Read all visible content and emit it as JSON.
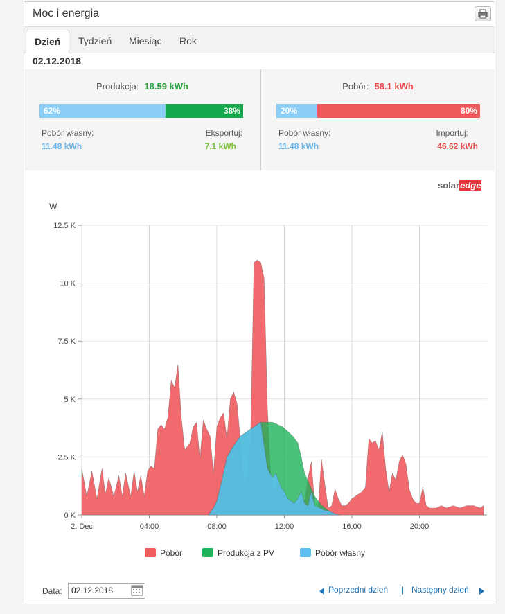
{
  "title": "Moc i energia",
  "tabs": [
    {
      "label": "Dzień",
      "active": true
    },
    {
      "label": "Tydzień",
      "active": false
    },
    {
      "label": "Miesiąc",
      "active": false
    },
    {
      "label": "Rok",
      "active": false
    }
  ],
  "date": "02.12.2018",
  "production": {
    "label": "Produkcja:",
    "value": "18.59 kWh",
    "self_pct": 0.62,
    "self_pct_label": "62%",
    "export_pct_label": "38%",
    "self_label": "Pobór własny:",
    "self_value": "11.48 kWh",
    "export_label": "Eksportuj:",
    "export_value": "7.1 kWh"
  },
  "consumption": {
    "label": "Pobór:",
    "value": "58.1 kWh",
    "self_pct": 0.2,
    "self_pct_label": "20%",
    "import_pct_label": "80%",
    "self_label": "Pobór własny:",
    "self_value": "11.48 kWh",
    "import_label": "Importuj:",
    "import_value": "46.62 kWh"
  },
  "logo": {
    "part1": "solar",
    "part2": "edge"
  },
  "colors": {
    "consumption": "#f05b5e",
    "production": "#1db35a",
    "self": "#5cc0f2",
    "blue_bar": "#8bcdf5",
    "green_bar": "#12a84b",
    "red_bar": "#f15a5c",
    "green_text": "#2e9e3f",
    "red_text": "#e5484b",
    "blue_text": "#6ab4e6",
    "export_text": "#7bbf3a"
  },
  "chart_data": {
    "type": "area",
    "ylabel": "W",
    "ylim": [
      0,
      12500
    ],
    "yticks": [
      {
        "v": 0,
        "label": "0 K"
      },
      {
        "v": 2500,
        "label": "2.5 K"
      },
      {
        "v": 5000,
        "label": "5 K"
      },
      {
        "v": 7500,
        "label": "7.5 K"
      },
      {
        "v": 10000,
        "label": "10 K"
      },
      {
        "v": 12500,
        "label": "12.5 K"
      }
    ],
    "xlim": [
      0,
      24
    ],
    "xticks": [
      {
        "v": 0,
        "label": "2. Dec"
      },
      {
        "v": 4,
        "label": "04:00"
      },
      {
        "v": 8,
        "label": "08:00"
      },
      {
        "v": 12,
        "label": "12:00"
      },
      {
        "v": 16,
        "label": "16:00"
      },
      {
        "v": 20,
        "label": "20:00"
      }
    ],
    "series": [
      {
        "name": "Pobór",
        "color": "#f05b5e",
        "x": [
          0,
          0.3,
          0.6,
          0.9,
          1.2,
          1.4,
          1.6,
          1.9,
          2.2,
          2.4,
          2.6,
          2.9,
          3.1,
          3.3,
          3.5,
          3.7,
          3.9,
          4.1,
          4.3,
          4.5,
          4.7,
          4.9,
          5.1,
          5.3,
          5.5,
          5.7,
          5.9,
          6.1,
          6.4,
          6.6,
          6.8,
          7.0,
          7.2,
          7.4,
          7.6,
          7.8,
          8.0,
          8.2,
          8.4,
          8.6,
          8.8,
          9.0,
          9.2,
          9.4,
          9.6,
          9.8,
          10.0,
          10.2,
          10.4,
          10.6,
          10.8,
          11.0,
          11.2,
          11.4,
          11.6,
          11.8,
          12.0,
          12.2,
          12.4,
          12.6,
          12.8,
          13.0,
          13.2,
          13.4,
          13.6,
          13.8,
          14.0,
          14.2,
          14.4,
          14.6,
          14.8,
          15.0,
          15.2,
          15.4,
          15.6,
          15.8,
          16.0,
          16.2,
          16.4,
          16.6,
          16.8,
          17.0,
          17.2,
          17.4,
          17.6,
          17.8,
          18.0,
          18.2,
          18.4,
          18.6,
          18.8,
          19.0,
          19.2,
          19.4,
          19.6,
          19.8,
          20.0,
          20.2,
          20.4,
          20.6,
          20.8,
          21.0,
          21.3,
          21.6,
          22.0,
          22.4,
          22.8,
          23.2,
          23.6,
          23.8
        ],
        "y": [
          2000,
          800,
          1900,
          700,
          2000,
          900,
          1600,
          800,
          1700,
          800,
          1800,
          800,
          1900,
          1000,
          1700,
          800,
          1900,
          2100,
          2000,
          3700,
          3900,
          3700,
          4200,
          5800,
          5500,
          6500,
          4200,
          2800,
          3100,
          3800,
          4000,
          2400,
          4100,
          3700,
          3400,
          1800,
          3800,
          4200,
          4400,
          3300,
          5000,
          5300,
          4800,
          3200,
          1400,
          1800,
          3300,
          10900,
          11000,
          10900,
          10200,
          4600,
          1600,
          1000,
          1400,
          1200,
          800,
          700,
          600,
          500,
          500,
          700,
          600,
          1600,
          2300,
          400,
          300,
          2400,
          1300,
          300,
          400,
          1100,
          700,
          400,
          400,
          500,
          700,
          800,
          900,
          1000,
          1200,
          3300,
          3100,
          3200,
          2800,
          3600,
          2000,
          1000,
          1800,
          1500,
          2300,
          2600,
          2200,
          1100,
          700,
          500,
          500,
          1200,
          400,
          300,
          300,
          300,
          400,
          300,
          400,
          300,
          400,
          400,
          300,
          400
        ]
      },
      {
        "name": "Produkcja z PV",
        "color": "#1db35a",
        "x": [
          7.5,
          7.8,
          8.0,
          8.3,
          8.6,
          9.0,
          9.4,
          9.8,
          10.2,
          10.6,
          11.0,
          11.3,
          11.6,
          11.9,
          12.2,
          12.5,
          12.8,
          13.0,
          13.2,
          13.5,
          13.8,
          14.1,
          14.4,
          14.7,
          15.0,
          15.3
        ],
        "y": [
          0,
          300,
          600,
          1500,
          2500,
          3000,
          3400,
          3600,
          3800,
          4000,
          4000,
          4000,
          3900,
          3800,
          3600,
          3400,
          3100,
          2500,
          1800,
          1300,
          800,
          500,
          300,
          150,
          50,
          0
        ]
      },
      {
        "name": "Pobór własny",
        "color": "#5cc0f2",
        "x": [
          7.5,
          7.8,
          8.0,
          8.3,
          8.6,
          9.0,
          9.4,
          9.8,
          10.2,
          10.6,
          11.0,
          11.3,
          11.5,
          11.8,
          12.0,
          12.2,
          12.4,
          12.6,
          12.8,
          13.0,
          13.2,
          13.4,
          13.6,
          13.8,
          14.1,
          14.4,
          14.7,
          15.0,
          15.3
        ],
        "y": [
          0,
          300,
          600,
          1500,
          2500,
          3000,
          3400,
          3600,
          3800,
          4000,
          2000,
          1600,
          1800,
          1200,
          1000,
          700,
          600,
          500,
          700,
          1000,
          500,
          400,
          1000,
          400,
          300,
          200,
          150,
          50,
          0
        ]
      }
    ]
  },
  "footer": {
    "date_label": "Data:",
    "date_value": "02.12.2018",
    "prev_label": "Poprzedni dzień",
    "separator": "|",
    "next_label": "Następny dzień"
  }
}
